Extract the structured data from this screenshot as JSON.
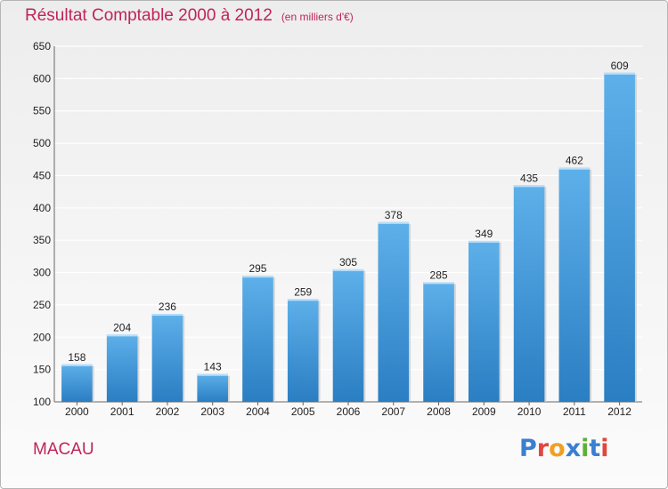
{
  "header": {
    "title": "Résultat Comptable 2000 à 2012",
    "unit": "(en milliers d'€)"
  },
  "footer": {
    "commune": "MACAU",
    "logo_text": "Proxiti",
    "logo_colors": [
      "#3a7fd0",
      "#e0473d",
      "#f0a021",
      "#3a7fd0",
      "#5bb23a",
      "#3a7fd0",
      "#e0473d"
    ]
  },
  "colors": {
    "title": "#c0245a",
    "bar_top": "#5eb0ea",
    "bar_bottom": "#2a7ec2",
    "grid": "#ffffff"
  },
  "chart_data": {
    "type": "bar",
    "title": "Résultat Comptable 2000 à 2012",
    "xlabel": "",
    "ylabel": "",
    "ylim": [
      100,
      650
    ],
    "yticks": [
      100,
      150,
      200,
      250,
      300,
      350,
      400,
      450,
      500,
      550,
      600,
      650
    ],
    "grid": true,
    "categories": [
      "2000",
      "2001",
      "2002",
      "2003",
      "2004",
      "2005",
      "2006",
      "2007",
      "2008",
      "2009",
      "2010",
      "2011",
      "2012"
    ],
    "values": [
      158,
      204,
      236,
      143,
      295,
      259,
      305,
      378,
      285,
      349,
      435,
      462,
      609
    ]
  }
}
